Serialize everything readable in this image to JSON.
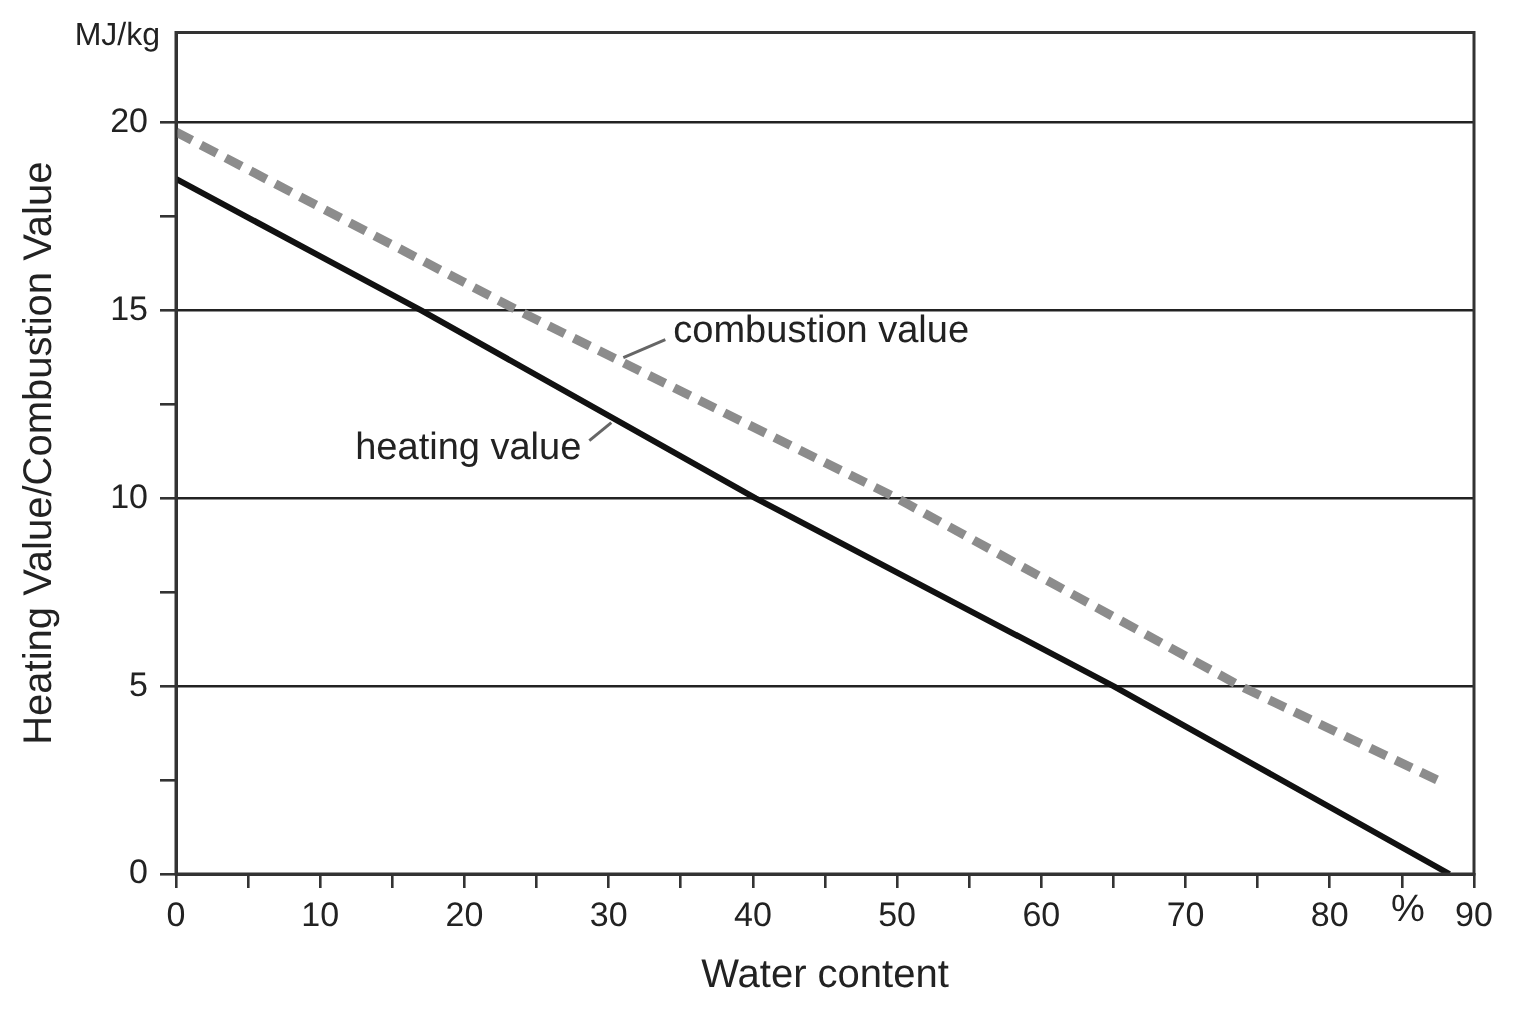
{
  "chart_data": {
    "type": "line",
    "xlabel": "Water content",
    "ylabel": "Heating Value/Combustion Value",
    "annotations": [
      "MJ/kg",
      "%"
    ],
    "series": [
      {
        "name": "combustion value",
        "color": "#8c8c8c",
        "line_style": "dashed",
        "x": [
          0,
          23.7,
          50,
          73.8,
          88
        ],
        "values": [
          19.75,
          15,
          10,
          5,
          2.4
        ]
      },
      {
        "name": "heating value",
        "color": "#111111",
        "line_style": "solid",
        "x": [
          0,
          17,
          40.2,
          65,
          88.3
        ],
        "values": [
          18.5,
          15,
          10,
          5,
          0
        ]
      }
    ],
    "xlim": [
      0,
      90
    ],
    "xticks": [
      0,
      {
        "value": 5,
        "label": null
      },
      10,
      {
        "value": 15,
        "label": null
      },
      20,
      {
        "value": 25,
        "label": null
      },
      30,
      {
        "value": 35,
        "label": null
      },
      40,
      {
        "value": 45,
        "label": null
      },
      50,
      {
        "value": 55,
        "label": null
      },
      60,
      {
        "value": 65,
        "label": null
      },
      70,
      {
        "value": 75,
        "label": null
      },
      80,
      {
        "value": 85,
        "label": null
      },
      90
    ],
    "ylim": [
      0,
      22.4
    ],
    "yticks": [
      0,
      {
        "value": 2.5,
        "label": null
      },
      5,
      {
        "value": 7.5,
        "label": null
      },
      10,
      {
        "value": 12.5,
        "label": null
      },
      15,
      {
        "value": 17.5,
        "label": null
      },
      20
    ],
    "grid": "y",
    "legend": false,
    "marker": "none"
  }
}
